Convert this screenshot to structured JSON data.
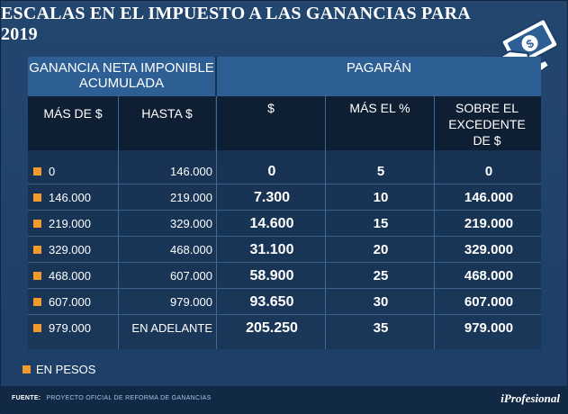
{
  "title": "ESCALAS EN EL IMPUESTO A LAS GANANCIAS PARA 2019",
  "icon": "money-bill-hand-icon",
  "colors": {
    "accent": "#f39a2d",
    "header_blue": "#2d5f95",
    "background": "#1d3e66"
  },
  "table": {
    "group_left": "GANANCIA NETA IMPONIBLE ACUMULADA",
    "group_right": "PAGARÁN",
    "columns": {
      "desde": "MÁS DE $",
      "hasta": "HASTA $",
      "pesos": "$",
      "pct": "MÁS EL %",
      "excedente": "SOBRE EL EXCEDENTE DE $"
    },
    "rows": [
      {
        "desde": "0",
        "hasta": "146.000",
        "pesos": "0",
        "pct": "5",
        "excedente": "0"
      },
      {
        "desde": "146.000",
        "hasta": "219.000",
        "pesos": "7.300",
        "pct": "10",
        "excedente": "146.000"
      },
      {
        "desde": "219.000",
        "hasta": "329.000",
        "pesos": "14.600",
        "pct": "15",
        "excedente": "219.000"
      },
      {
        "desde": "329.000",
        "hasta": "468.000",
        "pesos": "31.100",
        "pct": "20",
        "excedente": "329.000"
      },
      {
        "desde": "468.000",
        "hasta": "607.000",
        "pesos": "58.900",
        "pct": "25",
        "excedente": "468.000"
      },
      {
        "desde": "607.000",
        "hasta": "979.000",
        "pesos": "93.650",
        "pct": "30",
        "excedente": "607.000"
      },
      {
        "desde": "979.000",
        "hasta": "EN ADELANTE",
        "pesos": "205.250",
        "pct": "35",
        "excedente": "979.000"
      }
    ]
  },
  "legend": "EN PESOS",
  "footer": {
    "source_label": "FUENTE:",
    "source_text": "PROYECTO OFICIAL DE REFORMA DE GANANCIAS",
    "brand": "iProfesional"
  }
}
